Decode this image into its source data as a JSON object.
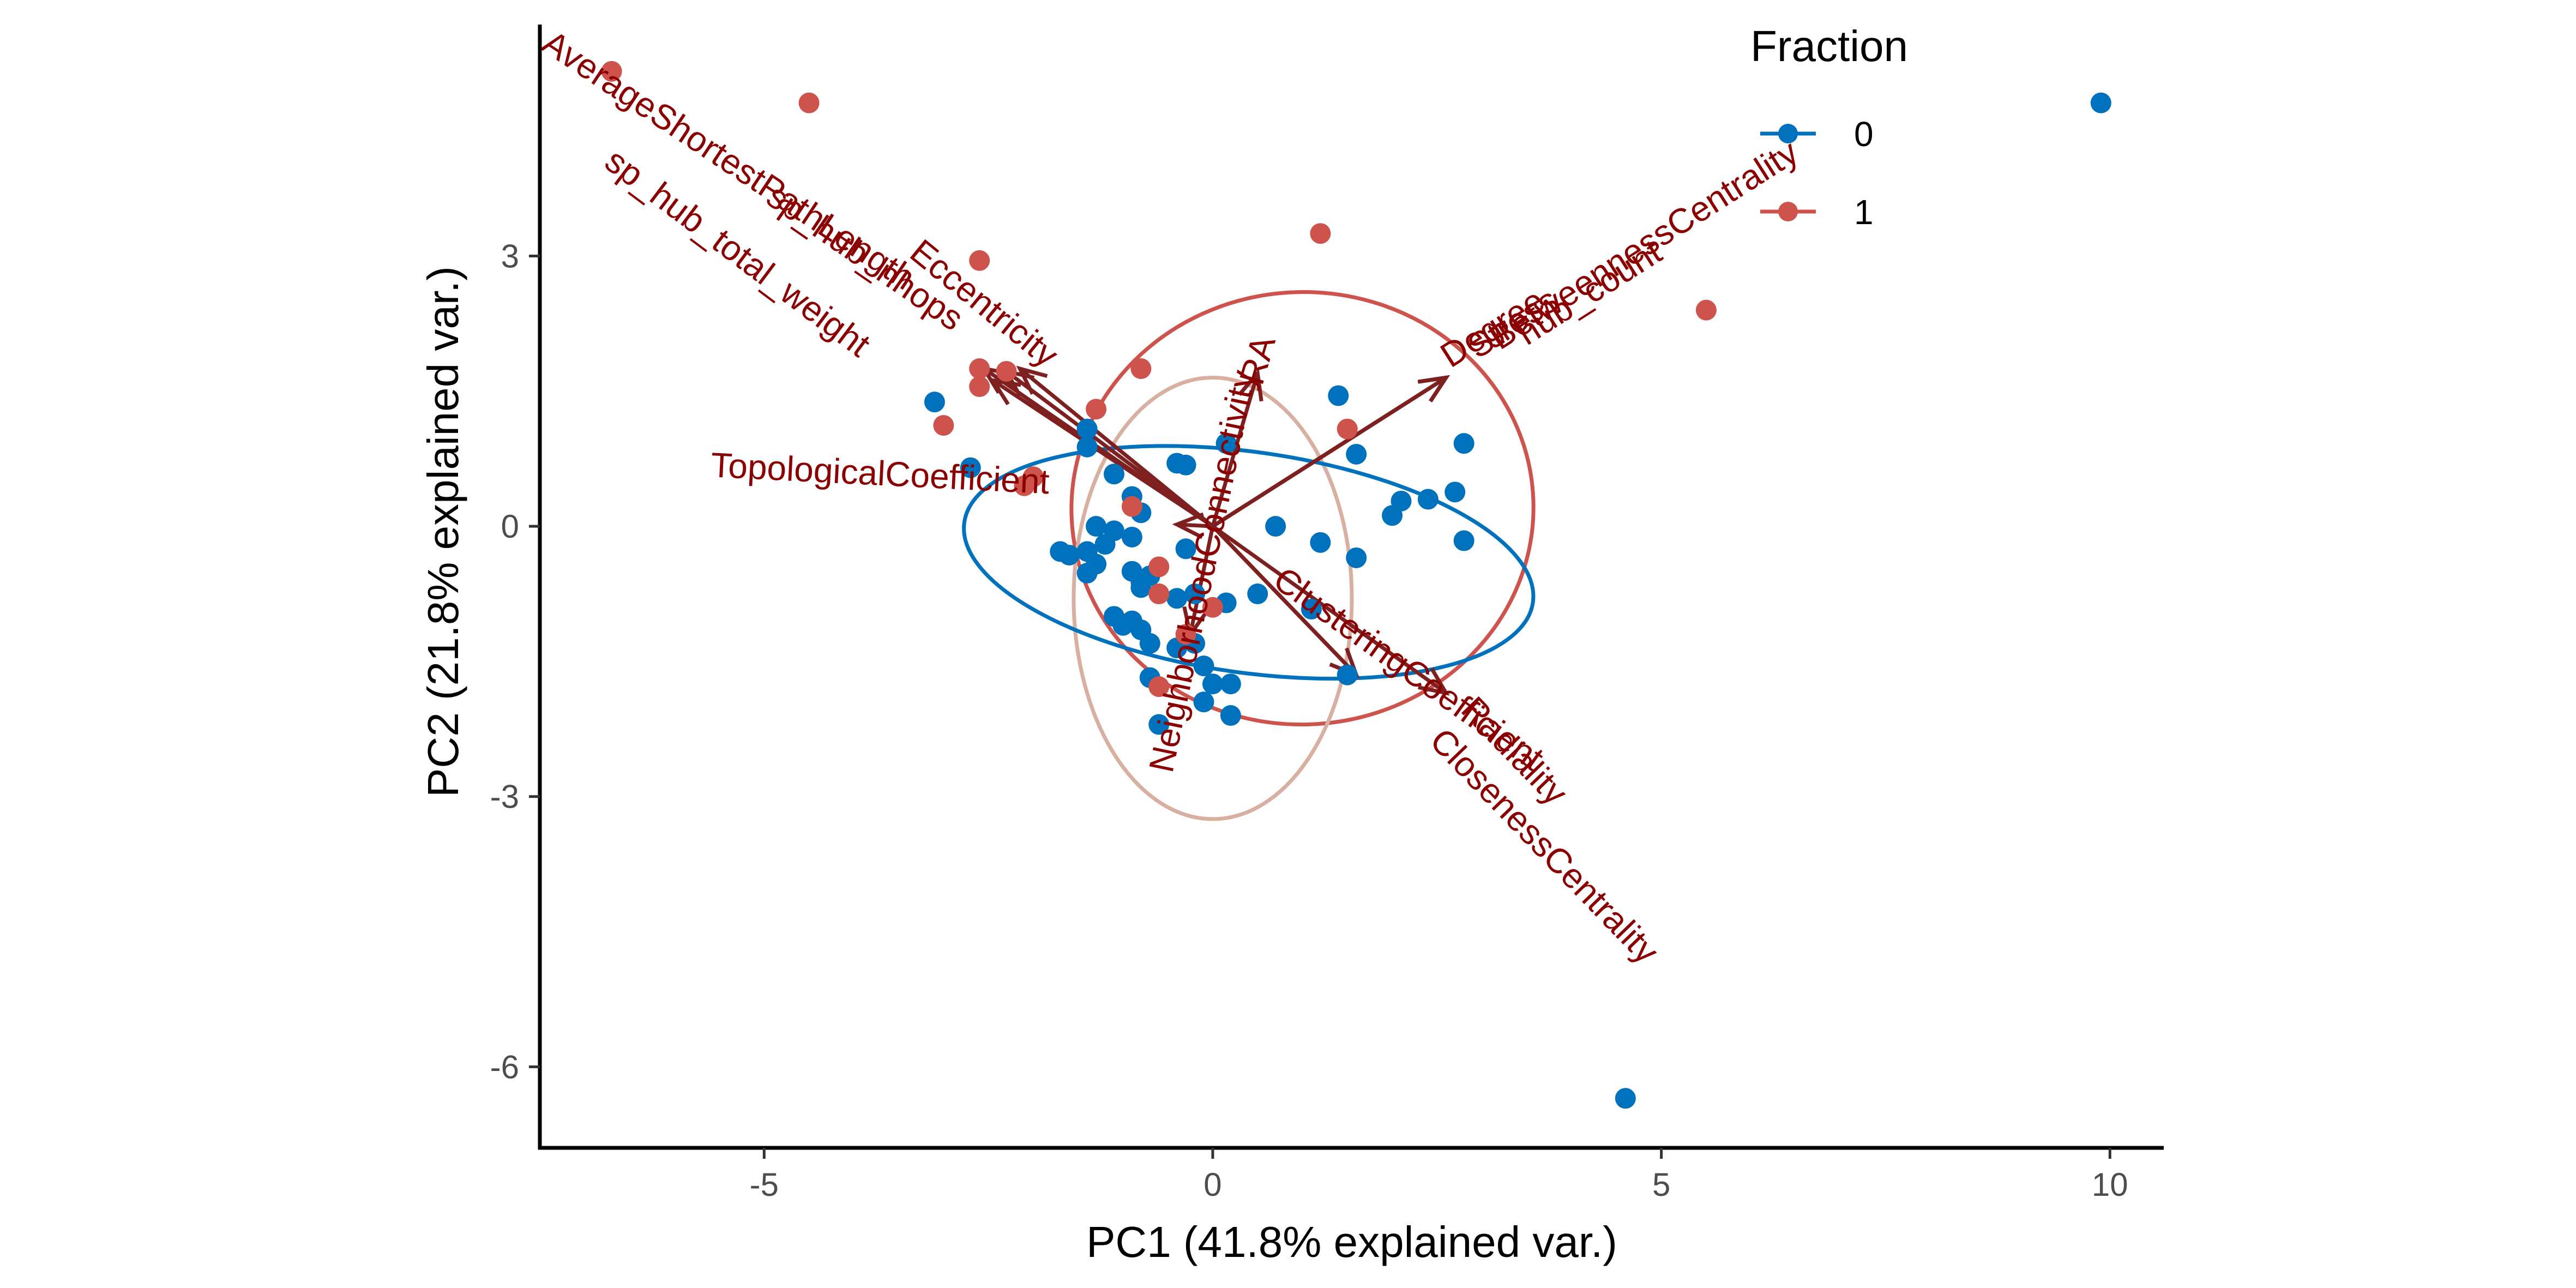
{
  "chart_data": {
    "type": "scatter",
    "xlabel": "PC1 (41.8% explained var.)",
    "ylabel": "PC2 (21.8% explained var.)",
    "xlim": [
      -7.5,
      10.6
    ],
    "ylim": [
      -6.9,
      5.6
    ],
    "xticks": [
      -5,
      0,
      5,
      10
    ],
    "yticks": [
      -6,
      -3,
      0,
      3
    ],
    "grid": false,
    "legend": {
      "title": "Fraction",
      "placement": "top-right",
      "entries": [
        {
          "label": "0",
          "color": "#0072BD"
        },
        {
          "label": "1",
          "color": "#CD534C"
        }
      ]
    },
    "series": [
      {
        "name": "0",
        "color": "#0072BD",
        "points": [
          [
            9.9,
            4.7
          ],
          [
            4.6,
            -6.35
          ],
          [
            -3.1,
            1.38
          ],
          [
            -2.7,
            0.65
          ],
          [
            -1.4,
            1.08
          ],
          [
            -1.4,
            0.88
          ],
          [
            -1.1,
            0.58
          ],
          [
            -0.9,
            0.33
          ],
          [
            -0.8,
            0.15
          ],
          [
            -1.3,
            0.0
          ],
          [
            -1.1,
            -0.05
          ],
          [
            -0.9,
            -0.12
          ],
          [
            -1.7,
            -0.28
          ],
          [
            -1.6,
            -0.32
          ],
          [
            -1.4,
            -0.28
          ],
          [
            -1.4,
            -0.52
          ],
          [
            -1.3,
            -0.42
          ],
          [
            -1.2,
            -0.2
          ],
          [
            -0.9,
            -0.5
          ],
          [
            -0.8,
            -0.62
          ],
          [
            -0.8,
            -0.68
          ],
          [
            -0.7,
            -0.55
          ],
          [
            -0.6,
            -0.75
          ],
          [
            -0.4,
            -0.8
          ],
          [
            -0.2,
            -0.75
          ],
          [
            -0.3,
            -0.25
          ],
          [
            -0.4,
            0.7
          ],
          [
            -0.3,
            0.68
          ],
          [
            0.15,
            0.92
          ],
          [
            0.15,
            -0.85
          ],
          [
            0.5,
            -0.75
          ],
          [
            1.1,
            -0.92
          ],
          [
            1.4,
            1.45
          ],
          [
            0.7,
            0.0
          ],
          [
            1.2,
            -0.18
          ],
          [
            1.6,
            -0.35
          ],
          [
            1.6,
            0.8
          ],
          [
            2.0,
            0.12
          ],
          [
            2.1,
            0.28
          ],
          [
            2.4,
            0.3
          ],
          [
            2.7,
            0.38
          ],
          [
            2.8,
            0.92
          ],
          [
            2.8,
            -0.16
          ],
          [
            -1.1,
            -1.0
          ],
          [
            -1.0,
            -1.1
          ],
          [
            -0.8,
            -1.15
          ],
          [
            -0.7,
            -1.3
          ],
          [
            -0.4,
            -1.35
          ],
          [
            -0.2,
            -1.3
          ],
          [
            -0.7,
            -1.68
          ],
          [
            -0.1,
            -1.55
          ],
          [
            0.0,
            -1.75
          ],
          [
            -0.1,
            -1.95
          ],
          [
            0.2,
            -1.75
          ],
          [
            0.2,
            -2.1
          ],
          [
            -0.6,
            -2.2
          ],
          [
            1.5,
            -1.65
          ],
          [
            -0.9,
            -1.05
          ]
        ]
      },
      {
        "name": "1",
        "color": "#CD534C",
        "points": [
          [
            -6.7,
            5.05
          ],
          [
            -4.5,
            4.7
          ],
          [
            -2.6,
            2.95
          ],
          [
            -2.6,
            1.75
          ],
          [
            -2.6,
            1.55
          ],
          [
            -2.3,
            1.72
          ],
          [
            -2.0,
            0.55
          ],
          [
            -2.1,
            0.45
          ],
          [
            -3.0,
            1.12
          ],
          [
            -1.3,
            1.3
          ],
          [
            -0.9,
            0.22
          ],
          [
            -0.8,
            1.75
          ],
          [
            1.2,
            3.25
          ],
          [
            5.5,
            2.4
          ],
          [
            1.5,
            1.08
          ],
          [
            -0.6,
            -0.75
          ],
          [
            -0.6,
            -0.45
          ],
          [
            -0.6,
            -1.78
          ],
          [
            -0.3,
            -1.2
          ],
          [
            0.0,
            -0.9
          ]
        ]
      }
    ],
    "ellipses": [
      {
        "series": "1",
        "center": [
          1.0,
          0.2
        ],
        "rx": 5.15,
        "ry": 4.8,
        "tilt_deg": -2,
        "color": "#CD534C"
      },
      {
        "series": "0",
        "center": [
          0.0,
          -0.8
        ],
        "rx": 3.1,
        "ry": 4.9,
        "tilt_deg": 0,
        "color": "#D8B0A2"
      },
      {
        "series": "0",
        "center": [
          0.4,
          -0.4
        ],
        "rx": 6.4,
        "ry": 2.45,
        "tilt_deg": 8,
        "color": "#0072BD"
      }
    ],
    "loadings": [
      {
        "name": "AverageShortestPathLength",
        "tip": [
          -2.45,
          1.62
        ],
        "label_at": [
          -7.5,
          5.3
        ]
      },
      {
        "name": "sp_hub_total_weight",
        "tip": [
          -2.3,
          1.72
        ],
        "label_at": [
          -6.8,
          4.0
        ]
      },
      {
        "name": "sp_hub_nhops",
        "tip": [
          -2.55,
          1.75
        ],
        "label_at": [
          -5.0,
          3.6
        ]
      },
      {
        "name": "Eccentricity",
        "tip": [
          -2.15,
          1.75
        ],
        "label_at": [
          -3.4,
          3.0
        ]
      },
      {
        "name": "RA",
        "tip": [
          0.5,
          1.7
        ],
        "label_at": [
          0.55,
          1.55
        ]
      },
      {
        "name": "Degree",
        "tip": [
          2.6,
          1.65
        ],
        "label_at": [
          2.65,
          1.75
        ]
      },
      {
        "name": "Stress",
        "tip": [
          2.6,
          1.65
        ],
        "label_at": [
          2.95,
          1.85
        ]
      },
      {
        "name": "BetweennessCentrality",
        "tip": [
          2.6,
          1.65
        ],
        "label_at": [
          3.2,
          1.95
        ]
      },
      {
        "name": "hub_count",
        "tip": [
          2.6,
          1.65
        ],
        "label_at": [
          3.5,
          2.0
        ]
      },
      {
        "name": "TopologicalCoefficient",
        "tip": [
          -0.4,
          0.02
        ],
        "label_at": [
          -5.6,
          0.55
        ]
      },
      {
        "name": "ClusteringCoefficient",
        "tip": [
          2.6,
          -1.85
        ],
        "label_at": [
          0.65,
          -0.65
        ]
      },
      {
        "name": "Radiality",
        "tip": [
          1.6,
          -1.65
        ],
        "label_at": [
          2.75,
          -2.05
        ]
      },
      {
        "name": "ClosenessCentrality",
        "tip": [
          1.6,
          -1.65
        ],
        "label_at": [
          2.4,
          -2.4
        ]
      },
      {
        "name": "NeighborhoodConnectivity",
        "tip": [
          -0.25,
          -1.2
        ],
        "label_at": [
          -0.45,
          -2.75
        ]
      }
    ]
  }
}
